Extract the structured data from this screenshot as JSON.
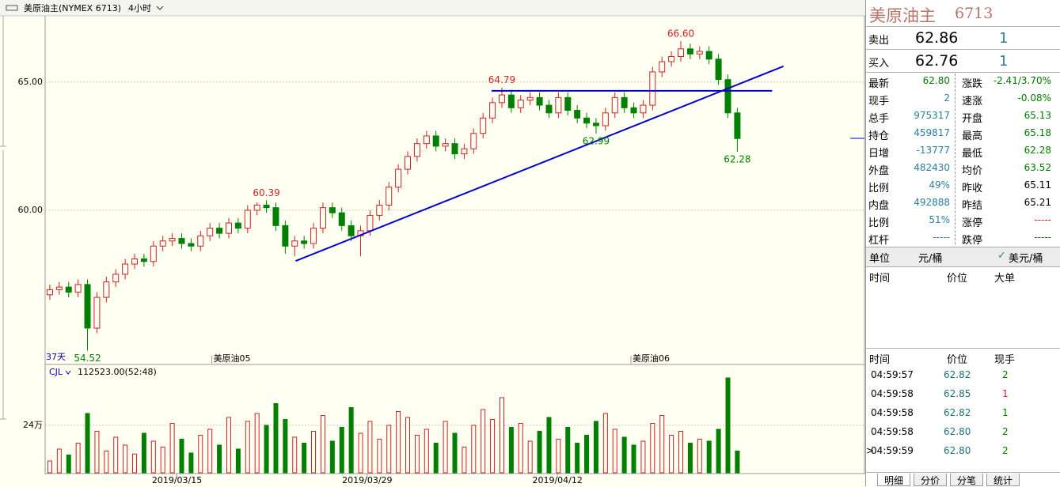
{
  "chart_data": {
    "type": "candlestick",
    "header": {
      "symbol": "美原油主(NYMEX 6713)",
      "period": "4小时"
    },
    "period_note": "37天",
    "up_color": "#d02020",
    "down_color": "#008000",
    "ylim": [
      54.01,
      67.59
    ],
    "yticks": [
      {
        "value": 60,
        "label": "60.00"
      },
      {
        "value": 65,
        "label": "65.00"
      }
    ],
    "xlim": [
      -0.5,
      86.5
    ],
    "xticks": [
      {
        "value": 13.5,
        "label": "2019/03/15"
      },
      {
        "value": 33.7,
        "label": "2019/03/29"
      },
      {
        "value": 53.9,
        "label": "2019/04/12"
      }
    ],
    "contract_marks": [
      {
        "label": "美原油05",
        "x": 17.2
      },
      {
        "label": "美原油06",
        "x": 61.7
      }
    ],
    "candles": {
      "open": [
        56.7,
        56.9,
        57.0,
        56.8,
        57.1,
        55.4,
        56.6,
        57.2,
        57.5,
        57.9,
        58.1,
        58.0,
        58.6,
        58.8,
        58.9,
        58.7,
        58.6,
        59.0,
        59.3,
        59.1,
        59.5,
        59.3,
        60.0,
        60.2,
        60.1,
        59.4,
        58.6,
        58.8,
        58.7,
        59.3,
        60.1,
        59.9,
        59.4,
        59.0,
        59.2,
        59.8,
        60.2,
        60.9,
        61.6,
        62.1,
        62.6,
        62.9,
        62.5,
        62.6,
        62.2,
        62.4,
        63.0,
        63.6,
        64.2,
        64.5,
        64.0,
        64.3,
        64.4,
        64.1,
        63.8,
        64.4,
        63.9,
        63.6,
        63.4,
        63.3,
        63.8,
        64.4,
        64.0,
        63.8,
        64.1,
        65.4,
        65.8,
        66.0,
        66.3,
        66.1,
        66.2,
        65.9,
        65.1,
        63.8
      ],
      "high": [
        57.1,
        57.2,
        57.2,
        57.3,
        57.3,
        56.8,
        57.4,
        57.7,
        58.1,
        58.3,
        58.3,
        58.8,
        59.0,
        59.1,
        59.1,
        58.9,
        59.2,
        59.5,
        59.5,
        59.7,
        59.7,
        60.2,
        60.3,
        60.39,
        60.3,
        59.6,
        59.0,
        59.0,
        59.5,
        60.3,
        60.3,
        60.1,
        59.6,
        59.4,
        60.0,
        60.4,
        61.1,
        61.8,
        62.3,
        62.8,
        63.1,
        63.1,
        62.8,
        62.8,
        62.6,
        63.2,
        63.8,
        64.4,
        64.79,
        64.7,
        64.5,
        64.6,
        64.6,
        64.3,
        64.6,
        64.6,
        64.1,
        63.8,
        63.6,
        64.0,
        64.6,
        64.6,
        64.2,
        64.3,
        65.6,
        66.0,
        66.2,
        66.6,
        66.5,
        66.4,
        66.4,
        66.1,
        65.3,
        64.0
      ],
      "low": [
        56.5,
        56.7,
        56.6,
        56.6,
        54.52,
        55.2,
        56.4,
        57.0,
        57.3,
        57.7,
        57.8,
        57.8,
        58.4,
        58.6,
        58.5,
        58.4,
        58.4,
        58.8,
        58.9,
        58.9,
        59.1,
        59.1,
        59.8,
        59.9,
        59.2,
        58.3,
        58.2,
        58.5,
        58.5,
        59.1,
        59.7,
        59.2,
        58.8,
        58.2,
        59.0,
        59.6,
        60.0,
        60.7,
        61.4,
        61.9,
        62.4,
        62.3,
        62.3,
        62.0,
        62.0,
        62.2,
        62.8,
        63.4,
        64.0,
        63.8,
        63.8,
        64.1,
        63.9,
        63.6,
        63.6,
        63.7,
        63.4,
        63.2,
        62.99,
        63.1,
        63.6,
        63.8,
        63.6,
        63.6,
        63.9,
        65.2,
        65.6,
        65.8,
        65.9,
        65.9,
        65.7,
        64.9,
        63.6,
        62.28
      ],
      "close": [
        56.9,
        57.0,
        56.8,
        57.1,
        55.4,
        56.6,
        57.2,
        57.5,
        57.9,
        58.1,
        58.0,
        58.6,
        58.8,
        58.9,
        58.7,
        58.6,
        59.0,
        59.3,
        59.1,
        59.5,
        59.3,
        60.0,
        60.2,
        60.1,
        59.4,
        58.6,
        58.8,
        58.7,
        59.3,
        60.1,
        59.9,
        59.4,
        59.0,
        59.2,
        59.8,
        60.2,
        60.9,
        61.6,
        62.1,
        62.6,
        62.9,
        62.5,
        62.6,
        62.2,
        62.4,
        63.0,
        63.6,
        64.2,
        64.5,
        64.0,
        64.3,
        64.4,
        64.1,
        63.8,
        64.4,
        63.9,
        63.6,
        63.4,
        63.3,
        63.8,
        64.4,
        64.0,
        63.8,
        64.1,
        65.4,
        65.8,
        66.0,
        66.3,
        66.1,
        66.2,
        65.9,
        65.1,
        63.8,
        62.8
      ]
    },
    "annotations": [
      {
        "text": "54.52",
        "x": 4,
        "y": 54.52,
        "color": "#008000",
        "side": "below"
      },
      {
        "text": "60.39",
        "x": 23,
        "y": 60.39,
        "color": "#d02020",
        "side": "above"
      },
      {
        "text": "64.79",
        "x": 48,
        "y": 64.79,
        "color": "#d02020",
        "side": "above"
      },
      {
        "text": "62.99",
        "x": 58,
        "y": 62.99,
        "color": "#008000",
        "side": "below"
      },
      {
        "text": "66.60",
        "x": 67,
        "y": 66.6,
        "color": "#d02020",
        "side": "above"
      },
      {
        "text": "62.28",
        "x": 73,
        "y": 62.28,
        "color": "#008000",
        "side": "below"
      }
    ],
    "trend_lines": [
      {
        "x": [
          26.1,
          77.9
        ],
        "y": [
          58.02,
          65.62
        ],
        "color": "#0000cc"
      },
      {
        "x": [
          46.9,
          76.7
        ],
        "y": [
          64.66,
          64.66
        ],
        "color": "#0000cc"
      }
    ],
    "volume": {
      "name": "CJL",
      "reading": "112523.00(52:48)",
      "ylim": [
        0,
        540000
      ],
      "yticks": [
        {
          "value": 240000,
          "label": "24万"
        }
      ],
      "values": [
        60000,
        120000,
        90000,
        150000,
        300000,
        210000,
        110000,
        180000,
        140000,
        95000,
        200000,
        160000,
        130000,
        250000,
        170000,
        100000,
        190000,
        220000,
        140000,
        280000,
        120000,
        260000,
        300000,
        240000,
        350000,
        270000,
        180000,
        150000,
        210000,
        290000,
        160000,
        230000,
        330000,
        200000,
        260000,
        170000,
        240000,
        310000,
        280000,
        190000,
        220000,
        150000,
        260000,
        200000,
        130000,
        240000,
        320000,
        270000,
        380000,
        230000,
        250000,
        160000,
        210000,
        280000,
        170000,
        230000,
        150000,
        190000,
        260000,
        300000,
        220000,
        180000,
        140000,
        160000,
        250000,
        290000,
        190000,
        210000,
        150000,
        170000,
        160000,
        220000,
        480000,
        110000
      ]
    }
  },
  "quote": {
    "name": "美原油主",
    "code": "6713",
    "ask": [
      "卖出",
      "62.86",
      "1"
    ],
    "bid": [
      "买入",
      "62.76",
      "1"
    ],
    "stats": [
      [
        "最新",
        "62.80",
        "涨跌",
        "-2.41/3.70%"
      ],
      [
        "现手",
        "2",
        "速涨",
        "-0.08%"
      ],
      [
        "总手",
        "975317",
        "开盘",
        "65.13"
      ],
      [
        "持仓",
        "459817",
        "最高",
        "65.18"
      ],
      [
        "日增",
        "-13777",
        "最低",
        "62.28"
      ],
      [
        "外盘",
        "482430",
        "均价",
        "63.52"
      ],
      [
        "比例",
        "49%",
        "昨收",
        "65.11"
      ],
      [
        "内盘",
        "492888",
        "昨结",
        "65.21"
      ],
      [
        "比例",
        "51%",
        "涨停",
        "-----"
      ],
      [
        "杠杆",
        "-----",
        "跌停",
        "-----"
      ]
    ],
    "stat_colors": [
      [
        "#007a00",
        "#007a00"
      ],
      [
        "#2a7f9a",
        "#007a00"
      ],
      [
        "#2a7f9a",
        "#007a00"
      ],
      [
        "#2a7f9a",
        "#007a00"
      ],
      [
        "#2a7f9a",
        "#007a00"
      ],
      [
        "#2a7f9a",
        "#007a00"
      ],
      [
        "#2a7f9a",
        "#000000"
      ],
      [
        "#2a7f9a",
        "#000000"
      ],
      [
        "#2a7f9a",
        "#d02020"
      ],
      [
        "#2a7f9a",
        "#007a00"
      ]
    ],
    "unit": [
      "单位",
      "元/桶",
      "美元/桶"
    ],
    "detail_header": [
      "时间",
      "价位",
      "大单"
    ],
    "trade_header": [
      "时间",
      "价位",
      "现手"
    ],
    "trades": [
      [
        "04:59:57",
        "62.82",
        "2"
      ],
      [
        "04:59:58",
        "62.85",
        "1"
      ],
      [
        "04:59:58",
        "62.82",
        "1"
      ],
      [
        "04:59:58",
        "62.80",
        "2"
      ],
      [
        "04:59:59",
        "62.80",
        "2"
      ]
    ],
    "trade_size_colors": [
      "#007a00",
      "#d02020",
      "#007a00",
      "#007a00",
      "#007a00"
    ],
    "tabs": [
      "明细",
      "分价",
      "分笔",
      "统计"
    ]
  }
}
